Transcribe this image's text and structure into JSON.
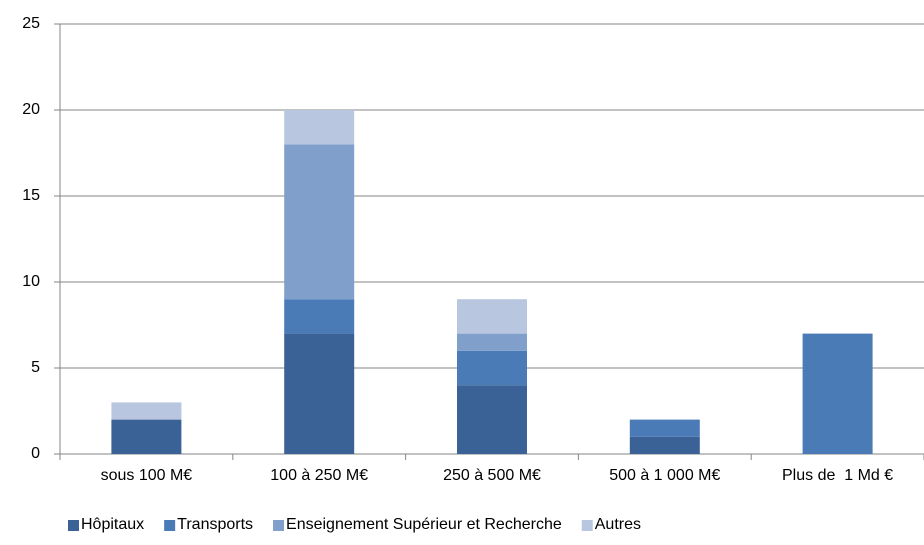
{
  "chart_data": {
    "type": "stacked-bar",
    "categories": [
      "sous 100 M€",
      "100 à 250 M€",
      "250 à 500 M€",
      "500 à 1 000 M€",
      "Plus de  1 Md €"
    ],
    "series": [
      {
        "name": "Hôpitaux",
        "color": "#3b6296",
        "values": [
          2,
          7,
          4,
          1,
          0
        ]
      },
      {
        "name": "Transports",
        "color": "#4a7bb6",
        "values": [
          0,
          2,
          2,
          1,
          7
        ]
      },
      {
        "name": "Enseignement Supérieur et Recherche",
        "color": "#809fcb",
        "values": [
          0,
          9,
          1,
          0,
          0
        ]
      },
      {
        "name": "Autres",
        "color": "#b8c7df",
        "values": [
          1,
          2,
          2,
          0,
          0
        ]
      }
    ],
    "ylim": [
      0,
      25
    ],
    "yticks": [
      0,
      5,
      10,
      15,
      20,
      25
    ],
    "grid": true,
    "legend": "bottom"
  }
}
